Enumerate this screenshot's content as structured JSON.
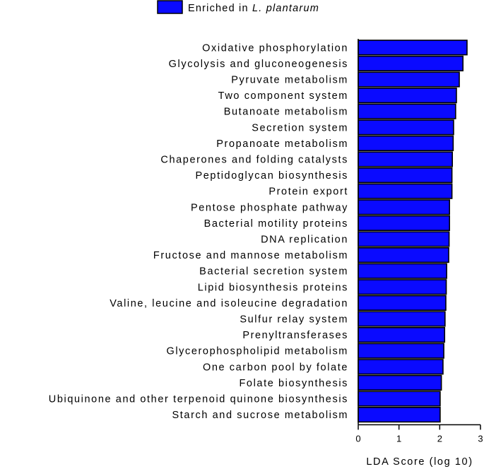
{
  "chart_data": {
    "type": "bar",
    "orientation": "horizontal",
    "legend": {
      "label_prefix": "Enriched in ",
      "label_italic": "L. plantarum",
      "color": "#0a0aff",
      "position": "top"
    },
    "categories": [
      "Oxidative phosphorylation",
      "Glycolysis and gluconeogenesis",
      "Pyruvate metabolism",
      "Two component system",
      "Butanoate metabolism",
      "Secretion system",
      "Propanoate metabolism",
      "Chaperones and folding catalysts",
      "Peptidoglycan biosynthesis",
      "Protein export",
      "Pentose phosphate pathway",
      "Bacterial motility proteins",
      "DNA replication",
      "Fructose and mannose metabolism",
      "Bacterial secretion system",
      "Lipid biosynthesis proteins",
      "Valine, leucine and isoleucine degradation",
      "Sulfur relay system",
      "Prenyltransferases",
      "Glycerophospholipid metabolism",
      "One carbon pool by folate",
      "Folate biosynthesis",
      "Ubiquinone and other terpenoid quinone biosynthesis",
      "Starch and sucrose metabolism"
    ],
    "values": [
      2.67,
      2.57,
      2.48,
      2.41,
      2.39,
      2.34,
      2.33,
      2.31,
      2.3,
      2.3,
      2.24,
      2.24,
      2.23,
      2.22,
      2.17,
      2.16,
      2.15,
      2.13,
      2.12,
      2.1,
      2.08,
      2.04,
      2.01,
      2.01
    ],
    "bar_color": "#0a0aff",
    "xlabel": "LDA Score (log 10)",
    "xlim": [
      0,
      3
    ],
    "xticks": [
      0,
      1,
      2,
      3
    ],
    "grid": false
  }
}
